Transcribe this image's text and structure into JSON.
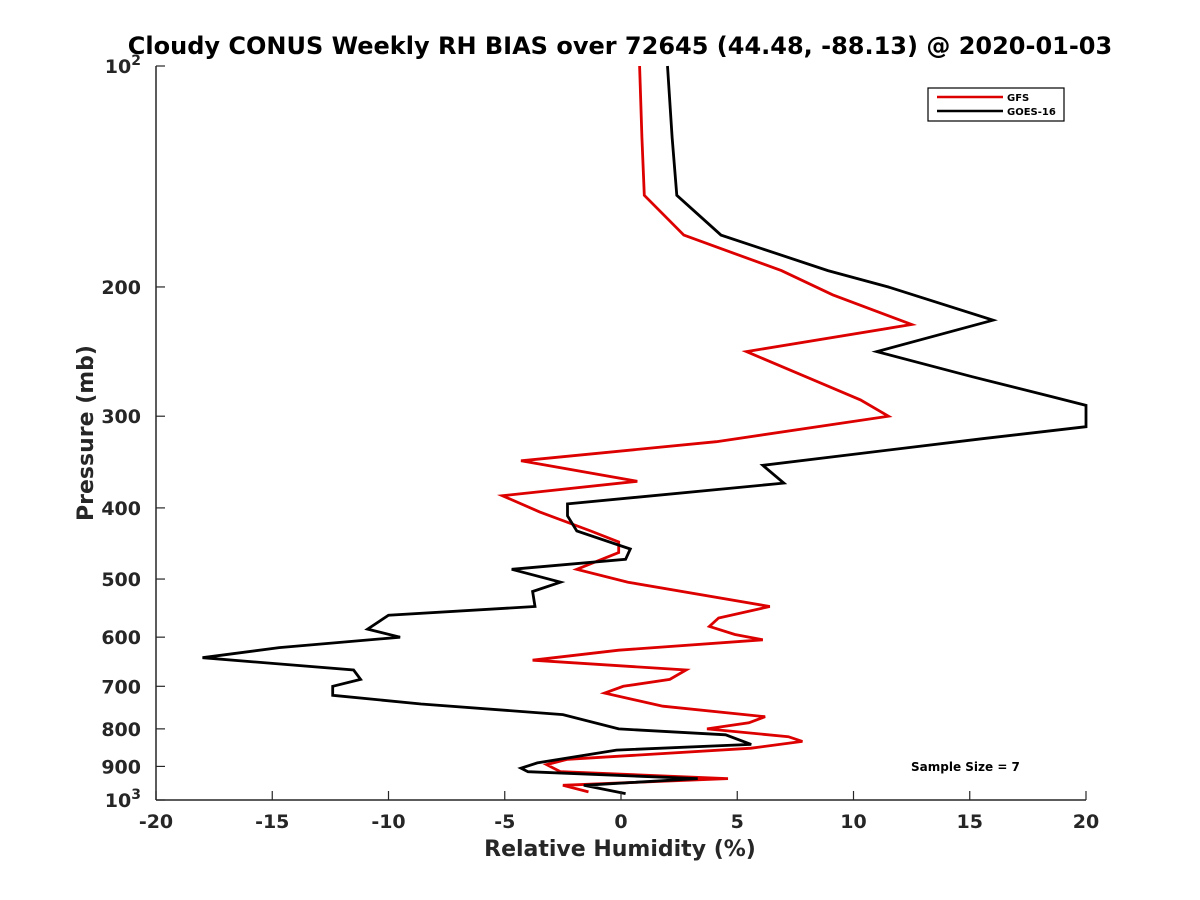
{
  "chart_data": {
    "type": "line",
    "title": "Cloudy CONUS Weekly RH BIAS over 72645 (44.48, -88.13) @ 2020-01-03",
    "xlabel": "Relative Humidity (%)",
    "ylabel": "Pressure (mb)",
    "xlim": [
      -20,
      20
    ],
    "ylim": [
      100,
      1000
    ],
    "y_scale": "log",
    "y_reversed": true,
    "grid": false,
    "legend_position": "top-right",
    "x_ticks": [
      "-20",
      "-15",
      "-10",
      "-5",
      "0",
      "5",
      "10",
      "15",
      "20"
    ],
    "y_ticks": [
      {
        "value": 100,
        "base": "10",
        "exp": "2"
      },
      {
        "value": 200,
        "label": "200"
      },
      {
        "value": 300,
        "label": "300"
      },
      {
        "value": 400,
        "label": "400"
      },
      {
        "value": 500,
        "label": "500"
      },
      {
        "value": 600,
        "label": "600"
      },
      {
        "value": 700,
        "label": "700"
      },
      {
        "value": 800,
        "label": "800"
      },
      {
        "value": 900,
        "label": "900"
      },
      {
        "value": 1000,
        "base": "10",
        "exp": "3"
      }
    ],
    "annotations": [
      {
        "text": "Sample Size = 7",
        "x": 15.5,
        "p": 900
      }
    ],
    "series": [
      {
        "name": "GFS",
        "color": "#dd0000",
        "points": [
          {
            "x": 0.8,
            "p": 100
          },
          {
            "x": 0.9,
            "p": 125
          },
          {
            "x": 1.0,
            "p": 150
          },
          {
            "x": 2.7,
            "p": 170
          },
          {
            "x": 6.9,
            "p": 190
          },
          {
            "x": 9.1,
            "p": 205
          },
          {
            "x": 12.5,
            "p": 225
          },
          {
            "x": 5.4,
            "p": 245
          },
          {
            "x": 10.3,
            "p": 285
          },
          {
            "x": 11.5,
            "p": 300
          },
          {
            "x": 4.1,
            "p": 325
          },
          {
            "x": -4.3,
            "p": 345
          },
          {
            "x": 0.7,
            "p": 368
          },
          {
            "x": -5.1,
            "p": 385
          },
          {
            "x": -3.5,
            "p": 405
          },
          {
            "x": -1.3,
            "p": 430
          },
          {
            "x": -0.1,
            "p": 445
          },
          {
            "x": -0.1,
            "p": 460
          },
          {
            "x": -1.9,
            "p": 485
          },
          {
            "x": 0.3,
            "p": 505
          },
          {
            "x": 6.4,
            "p": 545
          },
          {
            "x": 4.2,
            "p": 565
          },
          {
            "x": 3.8,
            "p": 580
          },
          {
            "x": 4.9,
            "p": 595
          },
          {
            "x": 6.1,
            "p": 605
          },
          {
            "x": -0.1,
            "p": 625
          },
          {
            "x": -3.8,
            "p": 645
          },
          {
            "x": 2.8,
            "p": 665
          },
          {
            "x": 2.1,
            "p": 685
          },
          {
            "x": 0.1,
            "p": 700
          },
          {
            "x": -0.7,
            "p": 715
          },
          {
            "x": 1.8,
            "p": 745
          },
          {
            "x": 6.2,
            "p": 770
          },
          {
            "x": 5.5,
            "p": 785
          },
          {
            "x": 3.7,
            "p": 800
          },
          {
            "x": 7.2,
            "p": 820
          },
          {
            "x": 7.8,
            "p": 832
          },
          {
            "x": 5.6,
            "p": 850
          },
          {
            "x": -2.3,
            "p": 880
          },
          {
            "x": -3.2,
            "p": 895
          },
          {
            "x": -2.6,
            "p": 915
          },
          {
            "x": 4.6,
            "p": 935
          },
          {
            "x": -2.5,
            "p": 955
          },
          {
            "x": -1.4,
            "p": 975
          }
        ]
      },
      {
        "name": "GOES-16",
        "color": "#000000",
        "points": [
          {
            "x": 2.0,
            "p": 100
          },
          {
            "x": 2.2,
            "p": 125
          },
          {
            "x": 2.4,
            "p": 150
          },
          {
            "x": 4.3,
            "p": 170
          },
          {
            "x": 8.9,
            "p": 190
          },
          {
            "x": 11.5,
            "p": 200
          },
          {
            "x": 16.0,
            "p": 222
          },
          {
            "x": 11.0,
            "p": 245
          },
          {
            "x": 15.1,
            "p": 265
          },
          {
            "x": 18.5,
            "p": 282
          },
          {
            "x": 20.0,
            "p": 290
          },
          {
            "x": 20.0,
            "p": 310
          },
          {
            "x": 15.5,
            "p": 322
          },
          {
            "x": 6.1,
            "p": 350
          },
          {
            "x": 7.0,
            "p": 370
          },
          {
            "x": -2.3,
            "p": 395
          },
          {
            "x": -2.3,
            "p": 410
          },
          {
            "x": -1.9,
            "p": 430
          },
          {
            "x": 0.4,
            "p": 455
          },
          {
            "x": 0.2,
            "p": 470
          },
          {
            "x": -4.7,
            "p": 485
          },
          {
            "x": -2.6,
            "p": 505
          },
          {
            "x": -3.8,
            "p": 520
          },
          {
            "x": -3.7,
            "p": 545
          },
          {
            "x": -10.0,
            "p": 560
          },
          {
            "x": -10.9,
            "p": 585
          },
          {
            "x": -9.5,
            "p": 600
          },
          {
            "x": -14.7,
            "p": 620
          },
          {
            "x": -18.0,
            "p": 640
          },
          {
            "x": -11.5,
            "p": 665
          },
          {
            "x": -11.2,
            "p": 685
          },
          {
            "x": -12.4,
            "p": 700
          },
          {
            "x": -12.4,
            "p": 720
          },
          {
            "x": -8.6,
            "p": 740
          },
          {
            "x": -2.5,
            "p": 765
          },
          {
            "x": -0.1,
            "p": 800
          },
          {
            "x": 4.5,
            "p": 815
          },
          {
            "x": 5.6,
            "p": 840
          },
          {
            "x": -0.2,
            "p": 855
          },
          {
            "x": -3.6,
            "p": 890
          },
          {
            "x": -4.3,
            "p": 905
          },
          {
            "x": -4.0,
            "p": 915
          },
          {
            "x": 3.3,
            "p": 935
          },
          {
            "x": -1.6,
            "p": 955
          },
          {
            "x": 0.2,
            "p": 980
          }
        ]
      }
    ]
  }
}
